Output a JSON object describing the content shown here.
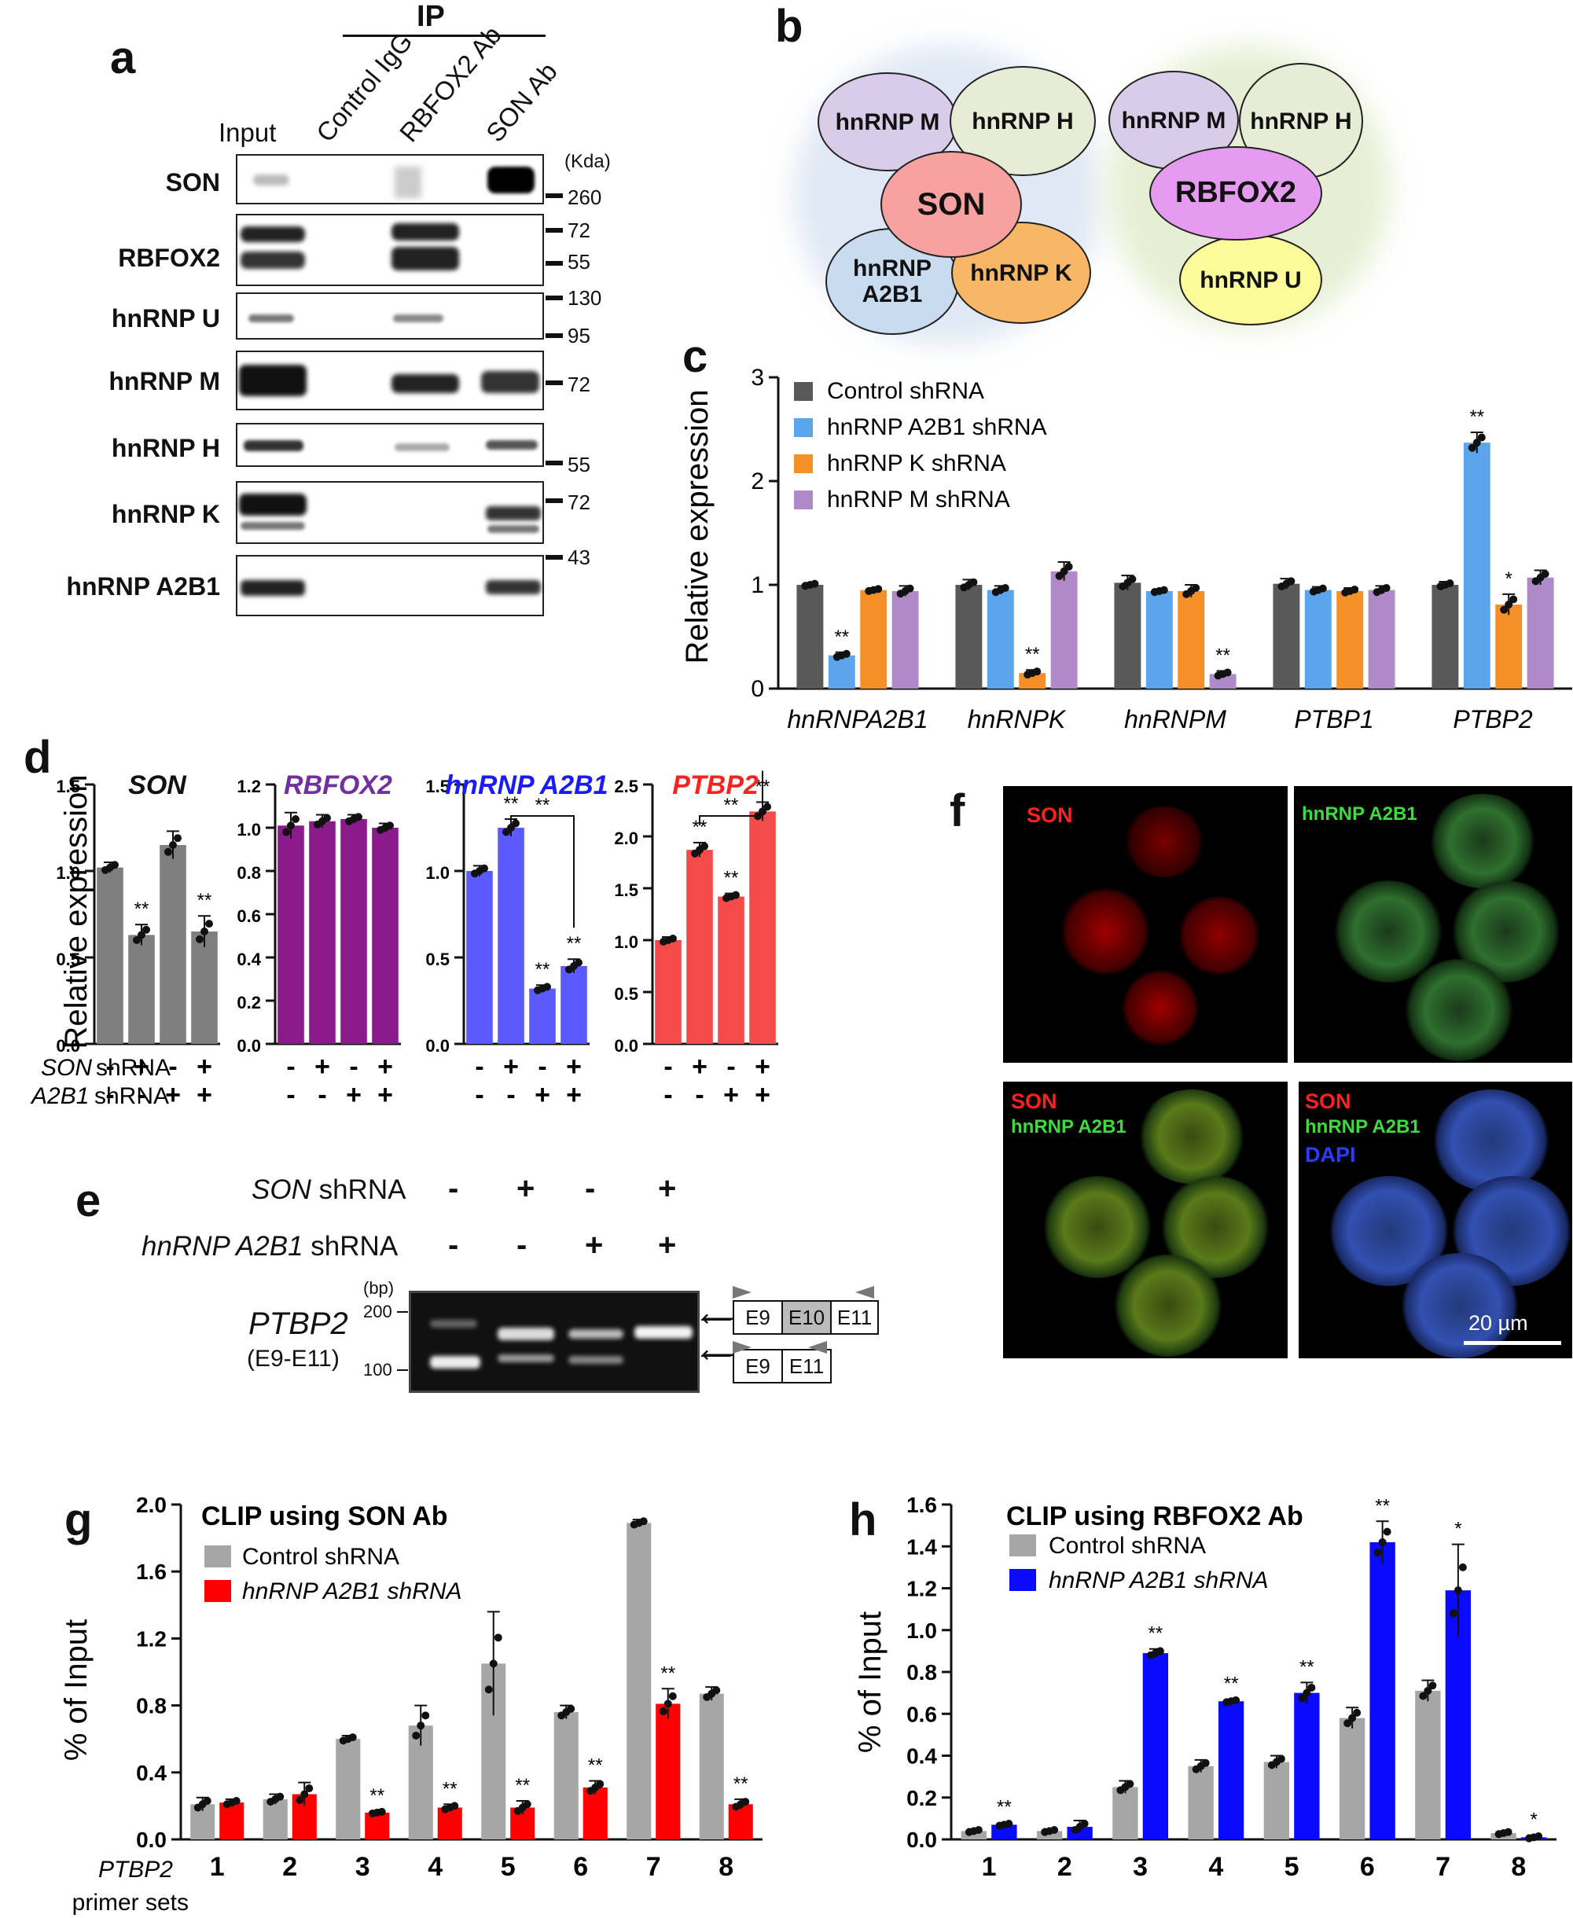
{
  "panel_letters": {
    "a": "a",
    "b": "b",
    "c": "c",
    "d": "d",
    "e": "e",
    "f": "f",
    "g": "g",
    "h": "h"
  },
  "panel_a": {
    "ip_label": "IP",
    "columns": [
      "Input",
      "Control IgG",
      "RBFOX2 Ab",
      "SON Ab"
    ],
    "unit_label": "(Kda)",
    "rows": [
      {
        "label": "SON",
        "markers": [
          "260"
        ]
      },
      {
        "label": "RBFOX2",
        "markers": [
          "72",
          "55"
        ]
      },
      {
        "label": "hnRNP U",
        "markers": [
          "130",
          "95"
        ]
      },
      {
        "label": "hnRNP M",
        "markers": [
          "72"
        ]
      },
      {
        "label": "hnRNP H",
        "markers": [
          "55"
        ]
      },
      {
        "label": "hnRNP K",
        "markers": [
          "72"
        ]
      },
      {
        "label": "hnRNP A2B1",
        "markers": [
          "43"
        ]
      }
    ]
  },
  "panel_b": {
    "left": {
      "center": "SON",
      "others": [
        "hnRNP M",
        "hnRNP H",
        "hnRNP A2B1",
        "hnRNP K"
      ]
    },
    "right": {
      "center": "RBFOX2",
      "others": [
        "hnRNP M",
        "hnRNP H",
        "hnRNP U"
      ]
    },
    "colors": {
      "son": "#f7a1a1",
      "rbfox2": "#e59bf0",
      "hnrnpm": "#d9cce8",
      "hnrnph": "#e6ecd6",
      "a2b1": "#c9dcef",
      "hnrnpk": "#f7b766",
      "hnrnpu": "#fbfb9a",
      "halo_left": "#dfe8f4",
      "halo_right": "#e6efd4"
    }
  },
  "panel_e": {
    "son_label": "SON shRNA",
    "a2b1_label": "hnRNP A2B1 shRNA",
    "son_signs": [
      "-",
      "+",
      "-",
      "+"
    ],
    "a2b1_signs": [
      "-",
      "-",
      "+",
      "+"
    ],
    "bp_label": "(bp)",
    "bp_200": "200",
    "bp_100": "100",
    "gene": "PTBP2",
    "gene_sub": "(E9-E11)",
    "exons_long": [
      "E9",
      "E10",
      "E11"
    ],
    "exons_short": [
      "E9",
      "E11"
    ]
  },
  "panel_f": {
    "scale_bar": "20 µm",
    "labels": {
      "son": "SON",
      "a2b1": "hnRNP A2B1",
      "dapi": "DAPI"
    }
  },
  "chart_data": [
    {
      "panel": "c",
      "type": "bar",
      "ylabel": "Relative expression",
      "ylim": [
        0,
        3
      ],
      "yticks": [
        0,
        1,
        2,
        3
      ],
      "categories": [
        "hnRNPA2B1",
        "hnRNPK",
        "hnRNPM",
        "PTBP1",
        "PTBP2"
      ],
      "series": [
        {
          "name": "Control shRNA",
          "color": "#595959",
          "values": [
            1.0,
            1.0,
            1.02,
            1.01,
            1.0
          ]
        },
        {
          "name": "hnRNP A2B1 shRNA",
          "color": "#5aa5ec",
          "values": [
            0.32,
            0.95,
            0.94,
            0.95,
            2.37
          ]
        },
        {
          "name": "hnRNP K shRNA",
          "color": "#f58f27",
          "values": [
            0.95,
            0.15,
            0.94,
            0.94,
            0.81
          ]
        },
        {
          "name": "hnRNP M shRNA",
          "color": "#b089c9",
          "values": [
            0.94,
            1.13,
            0.14,
            0.95,
            1.07
          ]
        }
      ],
      "errors": [
        [
          0.02,
          0.05,
          0.07,
          0.05,
          0.03
        ],
        [
          0.03,
          0.04,
          0.02,
          0.03,
          0.1
        ],
        [
          0.02,
          0.03,
          0.06,
          0.03,
          0.1
        ],
        [
          0.05,
          0.09,
          0.03,
          0.04,
          0.07
        ]
      ],
      "significance": [
        [
          "",
          "",
          "",
          "",
          ""
        ],
        [
          "**",
          "",
          "",
          "",
          "**"
        ],
        [
          "",
          "**",
          "",
          "",
          "*"
        ],
        [
          "",
          "",
          "**",
          "",
          ""
        ]
      ],
      "legend": "top-left"
    },
    {
      "panel": "d",
      "type": "bar",
      "ylabel": "Relative expression",
      "row_labels": [
        "SON shRNA",
        "A2B1 shRNA"
      ],
      "row_signs": [
        [
          "-",
          "+",
          "-",
          "+"
        ],
        [
          "-",
          "-",
          "+",
          "+"
        ]
      ],
      "subplots": [
        {
          "title": "SON",
          "title_color": "#111111",
          "bar_color": "#7f7f7f",
          "ylim": [
            0,
            1.5
          ],
          "yticks": [
            "0.0",
            "0.5",
            "1.0",
            "1.5"
          ],
          "values": [
            1.02,
            0.63,
            1.15,
            0.65
          ],
          "errors": [
            0.03,
            0.06,
            0.08,
            0.09
          ],
          "sig": [
            "",
            "**",
            "",
            "**"
          ],
          "bracket": ""
        },
        {
          "title": "RBFOX2",
          "title_color": "#7030a0",
          "bar_color": "#8b1a8b",
          "ylim": [
            0,
            1.2
          ],
          "yticks": [
            "0.0",
            "0.2",
            "0.4",
            "0.6",
            "0.8",
            "1.0",
            "1.2"
          ],
          "values": [
            1.01,
            1.03,
            1.04,
            1.0
          ],
          "errors": [
            0.06,
            0.03,
            0.02,
            0.02
          ],
          "sig": [
            "",
            "",
            "",
            ""
          ],
          "bracket": ""
        },
        {
          "title": "hnRNP A2B1",
          "title_color": "#1a1aff",
          "bar_color": "#5a5aff",
          "ylim": [
            0,
            1.5
          ],
          "yticks": [
            "0.0",
            "0.5",
            "1.0",
            "1.5"
          ],
          "values": [
            1.0,
            1.25,
            0.32,
            0.45
          ],
          "errors": [
            0.03,
            0.05,
            0.02,
            0.04
          ],
          "sig": [
            "",
            "**",
            "**",
            "**"
          ],
          "bracket": "**"
        },
        {
          "title": "PTBP2",
          "title_color": "#ff2020",
          "bar_color": "#f54a4a",
          "ylim": [
            0,
            2.5
          ],
          "yticks": [
            "0.0",
            "0.5",
            "1.0",
            "1.5",
            "2.0",
            "2.5"
          ],
          "values": [
            1.0,
            1.87,
            1.42,
            2.24
          ],
          "errors": [
            0.03,
            0.07,
            0.03,
            0.09
          ],
          "sig": [
            "",
            "**",
            "**",
            "**"
          ],
          "bracket": "**"
        }
      ]
    },
    {
      "panel": "g",
      "type": "bar",
      "title": "CLIP using SON Ab",
      "xlabel": "PTBP2 primer sets",
      "xlabel_gene": "PTBP2",
      "xlabel_rest": "primer sets",
      "ylabel": "% of Input",
      "ylim": [
        0,
        2.0
      ],
      "yticks": [
        "0.0",
        "0.4",
        "0.8",
        "1.2",
        "1.6",
        "2.0"
      ],
      "categories": [
        "1",
        "2",
        "3",
        "4",
        "5",
        "6",
        "7",
        "8"
      ],
      "series": [
        {
          "name": "Control shRNA",
          "color": "#a6a6a6",
          "values": [
            0.21,
            0.24,
            0.6,
            0.68,
            1.05,
            0.76,
            1.89,
            0.87
          ]
        },
        {
          "name": "hnRNP A2B1 shRNA",
          "color": "#ff0000",
          "values": [
            0.22,
            0.27,
            0.16,
            0.19,
            0.19,
            0.31,
            0.81,
            0.21
          ]
        }
      ],
      "errors": [
        [
          0.04,
          0.03,
          0.02,
          0.12,
          0.31,
          0.04,
          0.02,
          0.04
        ],
        [
          0.02,
          0.07,
          0.01,
          0.02,
          0.04,
          0.04,
          0.09,
          0.03
        ]
      ],
      "significance": [
        [
          "",
          "",
          "",
          "",
          "",
          "",
          "",
          ""
        ],
        [
          "",
          "",
          "**",
          "**",
          "**",
          "**",
          "**",
          "**"
        ]
      ],
      "legend": "top-left"
    },
    {
      "panel": "h",
      "type": "bar",
      "title": "CLIP using RBFOX2 Ab",
      "ylabel": "% of Input",
      "ylim": [
        0,
        1.6
      ],
      "yticks": [
        "0.0",
        "0.2",
        "0.4",
        "0.6",
        "0.8",
        "1.0",
        "1.2",
        "1.4",
        "1.6"
      ],
      "categories": [
        "1",
        "2",
        "3",
        "4",
        "5",
        "6",
        "7",
        "8"
      ],
      "series": [
        {
          "name": "Control shRNA",
          "color": "#a6a6a6",
          "values": [
            0.04,
            0.04,
            0.25,
            0.35,
            0.37,
            0.58,
            0.71,
            0.03
          ]
        },
        {
          "name": "hnRNP A2B1 shRNA",
          "color": "#0a0aff",
          "values": [
            0.07,
            0.06,
            0.89,
            0.66,
            0.7,
            1.42,
            1.19,
            0.01
          ]
        }
      ],
      "errors": [
        [
          0.01,
          0.01,
          0.03,
          0.03,
          0.03,
          0.05,
          0.05,
          0.01
        ],
        [
          0.01,
          0.03,
          0.02,
          0.01,
          0.05,
          0.1,
          0.22,
          0.01
        ]
      ],
      "significance": [
        [
          "",
          "",
          "",
          "",
          "",
          "",
          "",
          ""
        ],
        [
          "**",
          "",
          "**",
          "**",
          "**",
          "**",
          "*",
          "*"
        ]
      ],
      "legend": "top-left"
    }
  ]
}
